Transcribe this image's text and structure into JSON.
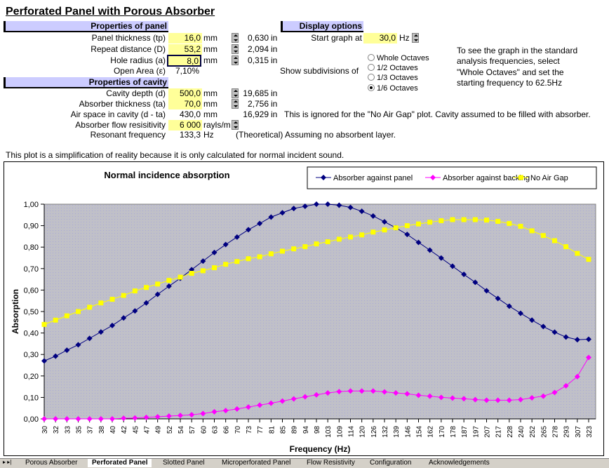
{
  "title": "Perforated Panel with Porous Absorber",
  "panel": {
    "header": "Properties of panel",
    "rows": [
      {
        "label": "Panel thickness (tp)",
        "value": "16,0",
        "unit": "mm",
        "inch": "0,630",
        "in": "in"
      },
      {
        "label": "Repeat distance (D)",
        "value": "53,2",
        "unit": "mm",
        "inch": "2,094",
        "in": "in"
      },
      {
        "label": "Hole radius (a)",
        "value": "8,0",
        "unit": "mm",
        "inch": "0,315",
        "in": "in"
      }
    ],
    "open_area_label": "Open Area (ε)",
    "open_area": "7,10%"
  },
  "cavity": {
    "header": "Properties of cavity",
    "rows": [
      {
        "label": "Cavity depth (d)",
        "value": "500,0",
        "unit": "mm",
        "inch": "19,685",
        "in": "in"
      },
      {
        "label": "Absorber thickness (ta)",
        "value": "70,0",
        "unit": "mm",
        "inch": "2,756",
        "in": "in"
      }
    ],
    "air_label": "Air space in cavity (d - ta)",
    "air_value": "430,0",
    "air_unit": "mm",
    "air_inch": "16,929",
    "air_in": "in",
    "air_note": "This is ignored for the \"No Air Gap\" plot.  Cavity assumed to be filled with absorber.",
    "flow_label": "Absorber flow resisitivity",
    "flow_value": "6 000",
    "flow_unit": "rayls/m",
    "res_label": "Resonant frequency",
    "res_value": "133,3",
    "res_unit": "Hz",
    "res_note": "(Theoretical) Assuming no absorbent layer."
  },
  "display": {
    "header": "Display options",
    "start_label": "Start graph at",
    "start_value": "30,0",
    "start_unit": "Hz",
    "subdiv_label": "Show subdivisions of",
    "options": [
      {
        "label": "Whole Octaves",
        "checked": false
      },
      {
        "label": "1/2 Octaves",
        "checked": false
      },
      {
        "label": "1/3 Octaves",
        "checked": false
      },
      {
        "label": "1/6 Octaves",
        "checked": true
      }
    ],
    "hint": [
      "To see the graph in the standard",
      "analysis frequencies, select",
      "\"Whole Octaves\" and set the",
      "starting frequency to 62.5Hz"
    ]
  },
  "note": "This plot is a simplification of reality because it is only calculated for normal incident sound.",
  "chart_data": {
    "type": "line",
    "title": "Normal incidence absorption",
    "xlabel": "Frequency (Hz)",
    "ylabel": "Absorption",
    "ylim": [
      0,
      1
    ],
    "yticks": [
      "0,00",
      "0,10",
      "0,20",
      "0,30",
      "0,40",
      "0,50",
      "0,60",
      "0,70",
      "0,80",
      "0,90",
      "1,00"
    ],
    "legend_position": "top-right",
    "x": [
      "30",
      "32",
      "33",
      "35",
      "37",
      "38",
      "40",
      "42",
      "45",
      "47",
      "49",
      "52",
      "54",
      "57",
      "60",
      "63",
      "66",
      "70",
      "73",
      "77",
      "81",
      "85",
      "89",
      "94",
      "98",
      "103",
      "109",
      "114",
      "120",
      "126",
      "132",
      "139",
      "146",
      "154",
      "162",
      "170",
      "178",
      "187",
      "197",
      "207",
      "217",
      "228",
      "240",
      "252",
      "265",
      "278",
      "293",
      "307",
      "323"
    ],
    "series": [
      {
        "name": "Absorber against panel",
        "color": "#000080",
        "marker": "diamond",
        "values": [
          0.27,
          0.292,
          0.32,
          0.345,
          0.375,
          0.405,
          0.435,
          0.47,
          0.503,
          0.54,
          0.58,
          0.618,
          0.655,
          0.695,
          0.735,
          0.775,
          0.812,
          0.847,
          0.881,
          0.91,
          0.94,
          0.96,
          0.98,
          0.99,
          1.0,
          1.0,
          0.995,
          0.985,
          0.967,
          0.945,
          0.918,
          0.89,
          0.859,
          0.822,
          0.786,
          0.749,
          0.711,
          0.673,
          0.636,
          0.597,
          0.561,
          0.525,
          0.492,
          0.46,
          0.43,
          0.404,
          0.381,
          0.369,
          0.371
        ]
      },
      {
        "name": "Absorber against backing",
        "color": "#ff00ff",
        "marker": "diamond",
        "values": [
          0,
          0,
          0,
          0,
          0,
          0,
          0,
          0.003,
          0.004,
          0.007,
          0.01,
          0.013,
          0.016,
          0.019,
          0.025,
          0.033,
          0.039,
          0.046,
          0.055,
          0.064,
          0.073,
          0.083,
          0.093,
          0.103,
          0.112,
          0.121,
          0.127,
          0.13,
          0.13,
          0.13,
          0.126,
          0.121,
          0.117,
          0.11,
          0.106,
          0.1,
          0.097,
          0.094,
          0.09,
          0.087,
          0.087,
          0.087,
          0.09,
          0.098,
          0.106,
          0.123,
          0.154,
          0.197,
          0.286
        ]
      },
      {
        "name": "No Air Gap",
        "color": "#ffff00",
        "marker": "square",
        "values": [
          0.44,
          0.46,
          0.48,
          0.5,
          0.52,
          0.54,
          0.557,
          0.575,
          0.596,
          0.612,
          0.628,
          0.645,
          0.66,
          0.678,
          0.69,
          0.704,
          0.72,
          0.733,
          0.746,
          0.755,
          0.769,
          0.781,
          0.792,
          0.802,
          0.815,
          0.825,
          0.837,
          0.847,
          0.857,
          0.87,
          0.88,
          0.89,
          0.9,
          0.908,
          0.916,
          0.923,
          0.928,
          0.928,
          0.928,
          0.926,
          0.92,
          0.91,
          0.897,
          0.876,
          0.854,
          0.83,
          0.802,
          0.771,
          0.743
        ]
      }
    ]
  },
  "tabs": [
    "Porous Absorber",
    "Perforated Panel",
    "Slotted Panel",
    "Microperforated Panel",
    "Flow Resistivity",
    "Configuration",
    "Acknowledgements"
  ],
  "active_tab": 1
}
